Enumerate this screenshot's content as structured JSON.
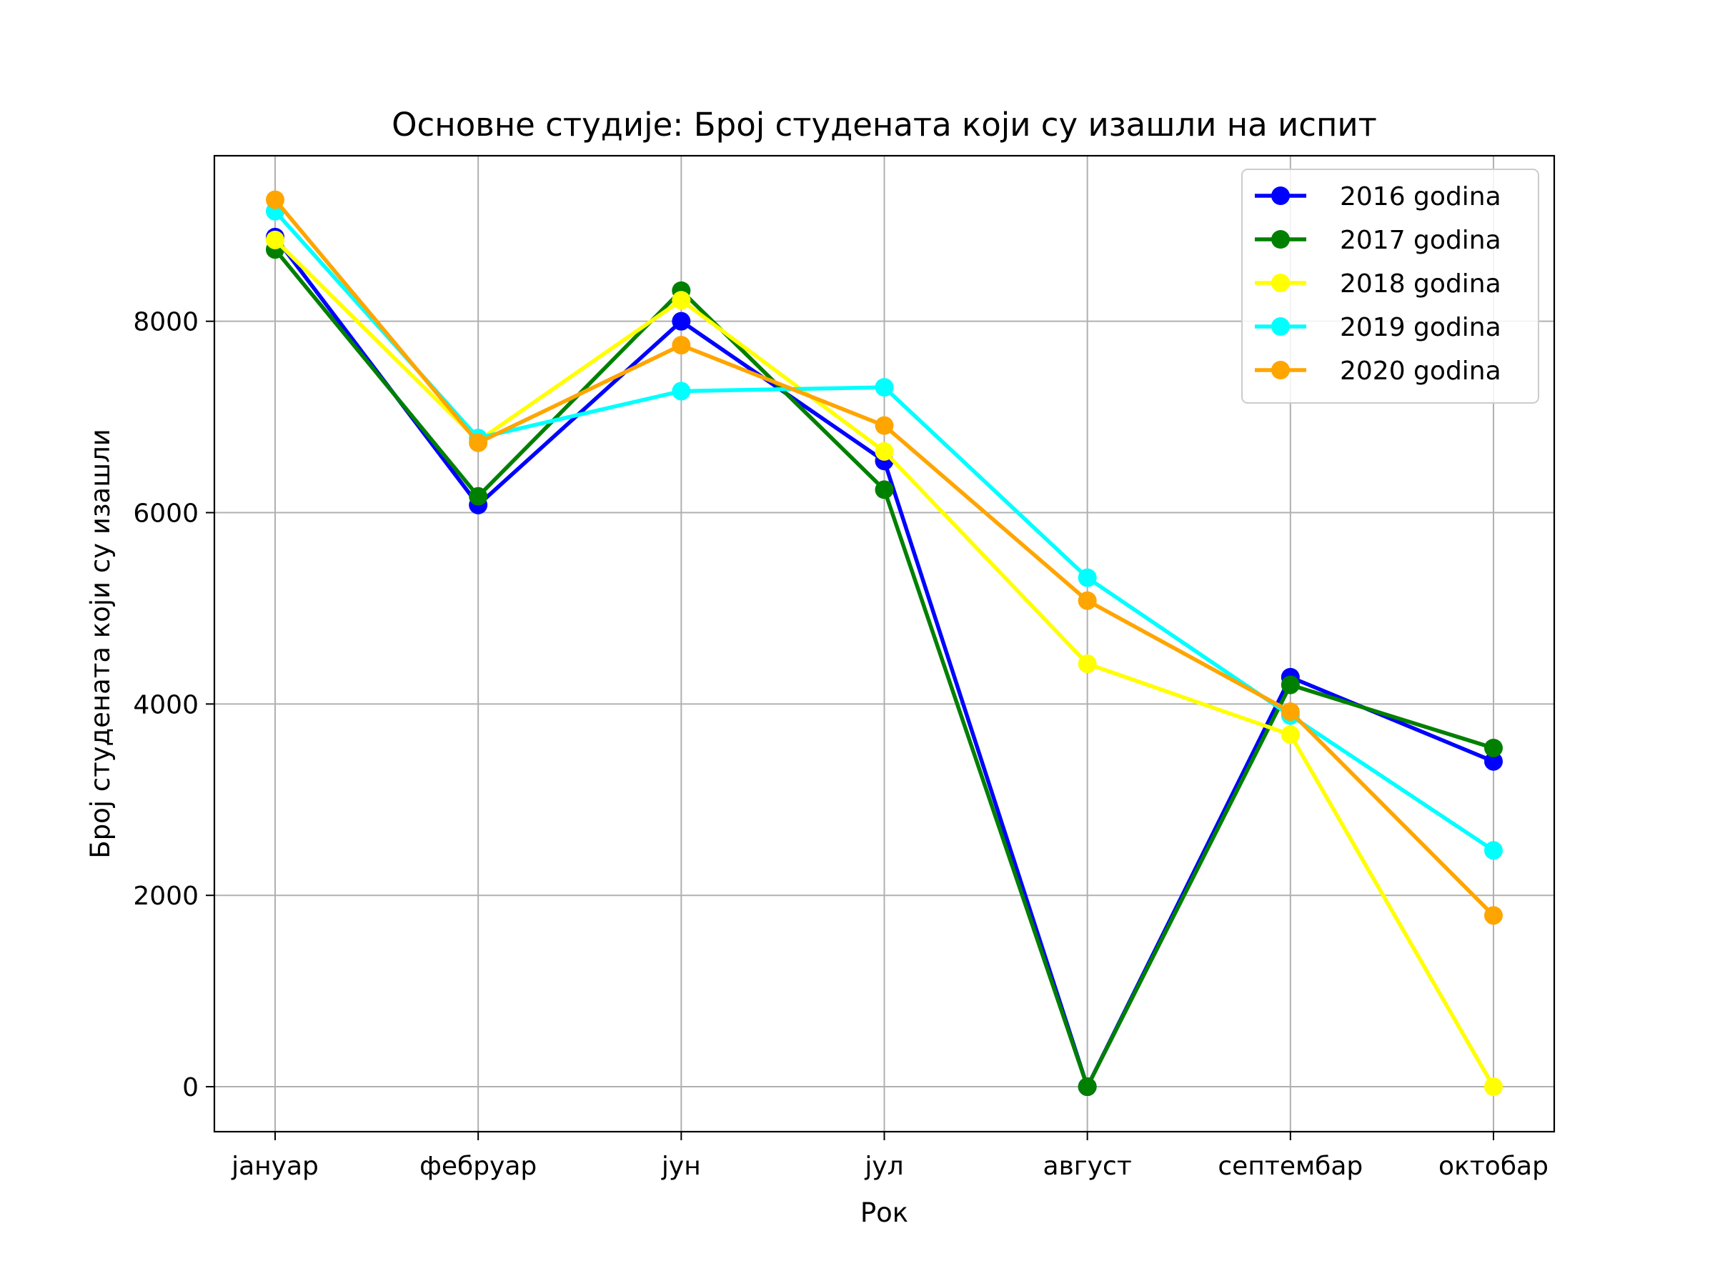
{
  "chart_data": {
    "type": "line",
    "title": "Основне студије: Број студената који су изашли на испит",
    "xlabel": "Рок",
    "ylabel": "Број студената који су изашли",
    "categories": [
      "јануар",
      "фебруар",
      "јун",
      "јул",
      "август",
      "септембар",
      "октобар"
    ],
    "ylim": [
      -470,
      9730
    ],
    "yticks": [
      0,
      2000,
      4000,
      6000,
      8000
    ],
    "grid": true,
    "legend_position": "top-right",
    "series": [
      {
        "name": "2016 godina",
        "color": "#0000ff",
        "values": [
          8880,
          6080,
          8000,
          6540,
          0,
          4280,
          3400
        ]
      },
      {
        "name": "2017 godina",
        "color": "#008000",
        "values": [
          8750,
          6170,
          8320,
          6240,
          0,
          4200,
          3540
        ]
      },
      {
        "name": "2018 godina",
        "color": "#ffff00",
        "values": [
          8850,
          6750,
          8220,
          6640,
          4420,
          3680,
          0
        ]
      },
      {
        "name": "2019 godina",
        "color": "#00ffff",
        "values": [
          9150,
          6780,
          7270,
          7310,
          5320,
          3880,
          2470
        ]
      },
      {
        "name": "2020 godina",
        "color": "#ffa500",
        "values": [
          9270,
          6730,
          7750,
          6910,
          5080,
          3920,
          1790
        ]
      }
    ]
  }
}
